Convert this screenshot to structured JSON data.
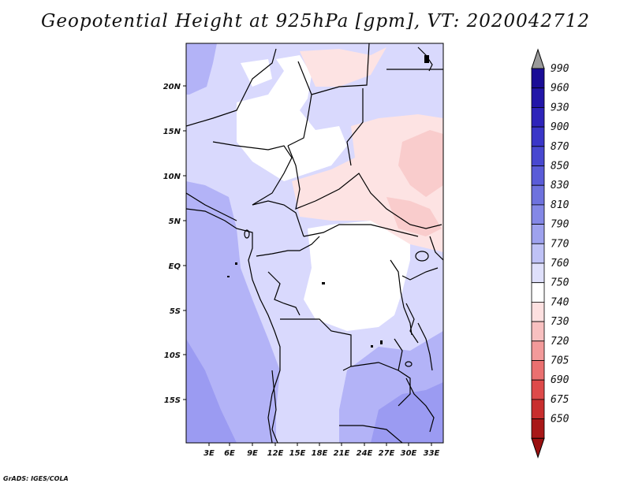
{
  "title": "Geopotential Height at 925hPa [gpm], VT: 2020042712",
  "credit": "GrADS: IGES/COLA",
  "axes": {
    "x_ticks": [
      "3E",
      "6E",
      "9E",
      "12E",
      "15E",
      "18E",
      "21E",
      "24E",
      "27E",
      "30E",
      "33E"
    ],
    "y_ticks": [
      "20N",
      "15N",
      "10N",
      "5N",
      "EQ",
      "5S",
      "10S",
      "15S"
    ]
  },
  "colorbar": {
    "levels": [
      "990",
      "960",
      "930",
      "900",
      "870",
      "850",
      "830",
      "810",
      "790",
      "770",
      "760",
      "750",
      "740",
      "730",
      "720",
      "705",
      "690",
      "675",
      "650"
    ],
    "colors": [
      "#1a0d96",
      "#2216a8",
      "#2e24ba",
      "#3a36c8",
      "#4848d0",
      "#5a5cd8",
      "#6e72de",
      "#8488e6",
      "#9ea2ee",
      "#bfc2f6",
      "#dfe0fb",
      "#ffffff",
      "#fde0e0",
      "#f8c0c0",
      "#f29a9a",
      "#ea7070",
      "#de4a4a",
      "#c82e2e",
      "#a81818"
    ],
    "top_arrow_color": "#9a9a9a",
    "bottom_arrow_color": "#9a1010"
  },
  "colors": {
    "border": "#000000",
    "blue_dark": "#9b9bf2",
    "blue_mid": "#b3b3f7",
    "blue_light": "#d9d9fd",
    "white": "#ffffff",
    "pink_light": "#fde3e3",
    "pink": "#f9cccc"
  }
}
